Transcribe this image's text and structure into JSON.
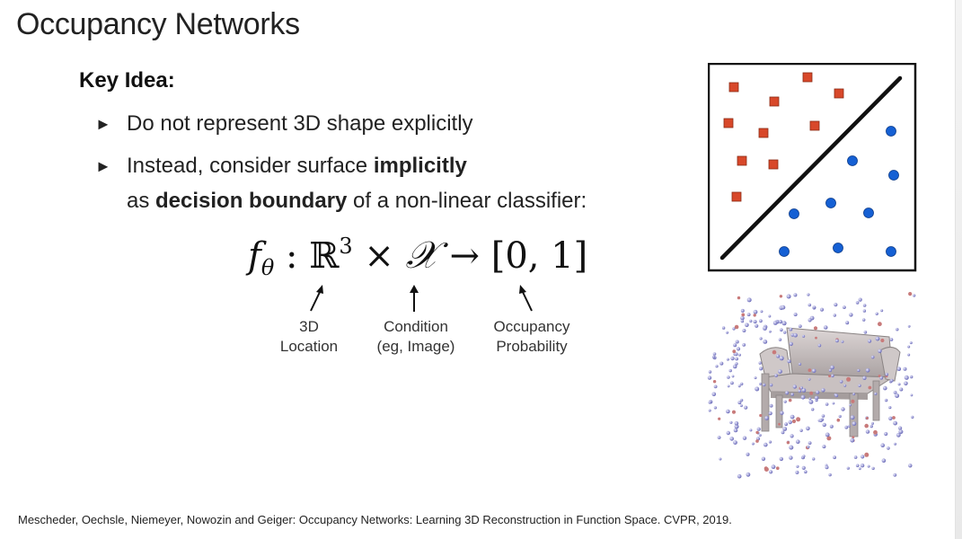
{
  "slide": {
    "title": "Occupancy Networks",
    "key_idea": "Key Idea:",
    "bullets": [
      {
        "text": "Do not represent 3D shape explicitly"
      },
      {
        "pre": "Instead, consider surface ",
        "bold": "implicitly"
      }
    ],
    "continuation": {
      "pre": "as ",
      "bold": "decision boundary",
      "post": " of a non-linear classifier:"
    },
    "bullet_glyph": "►",
    "formula": {
      "f": "f",
      "theta": "θ",
      "colon": " : ",
      "reals": "ℝ",
      "exp": "3",
      "times": " × ",
      "X": "𝒳",
      "to": " → ",
      "range": "[0, 1]"
    },
    "annotations": [
      {
        "line1": "3D",
        "line2": "Location"
      },
      {
        "line1": "Condition",
        "line2": "(eg, Image)"
      },
      {
        "line1": "Occupancy",
        "line2": "Probability"
      }
    ],
    "citation": "Mescheder, Oechsle, Niemeyer, Nowozin and Geiger: Occupancy Networks: Learning 3D Reconstruction in Function Space. CVPR, 2019.",
    "colors": {
      "square": "#d8482a",
      "circle": "#1560d4",
      "point_cloud": "#9a9ad8"
    }
  }
}
